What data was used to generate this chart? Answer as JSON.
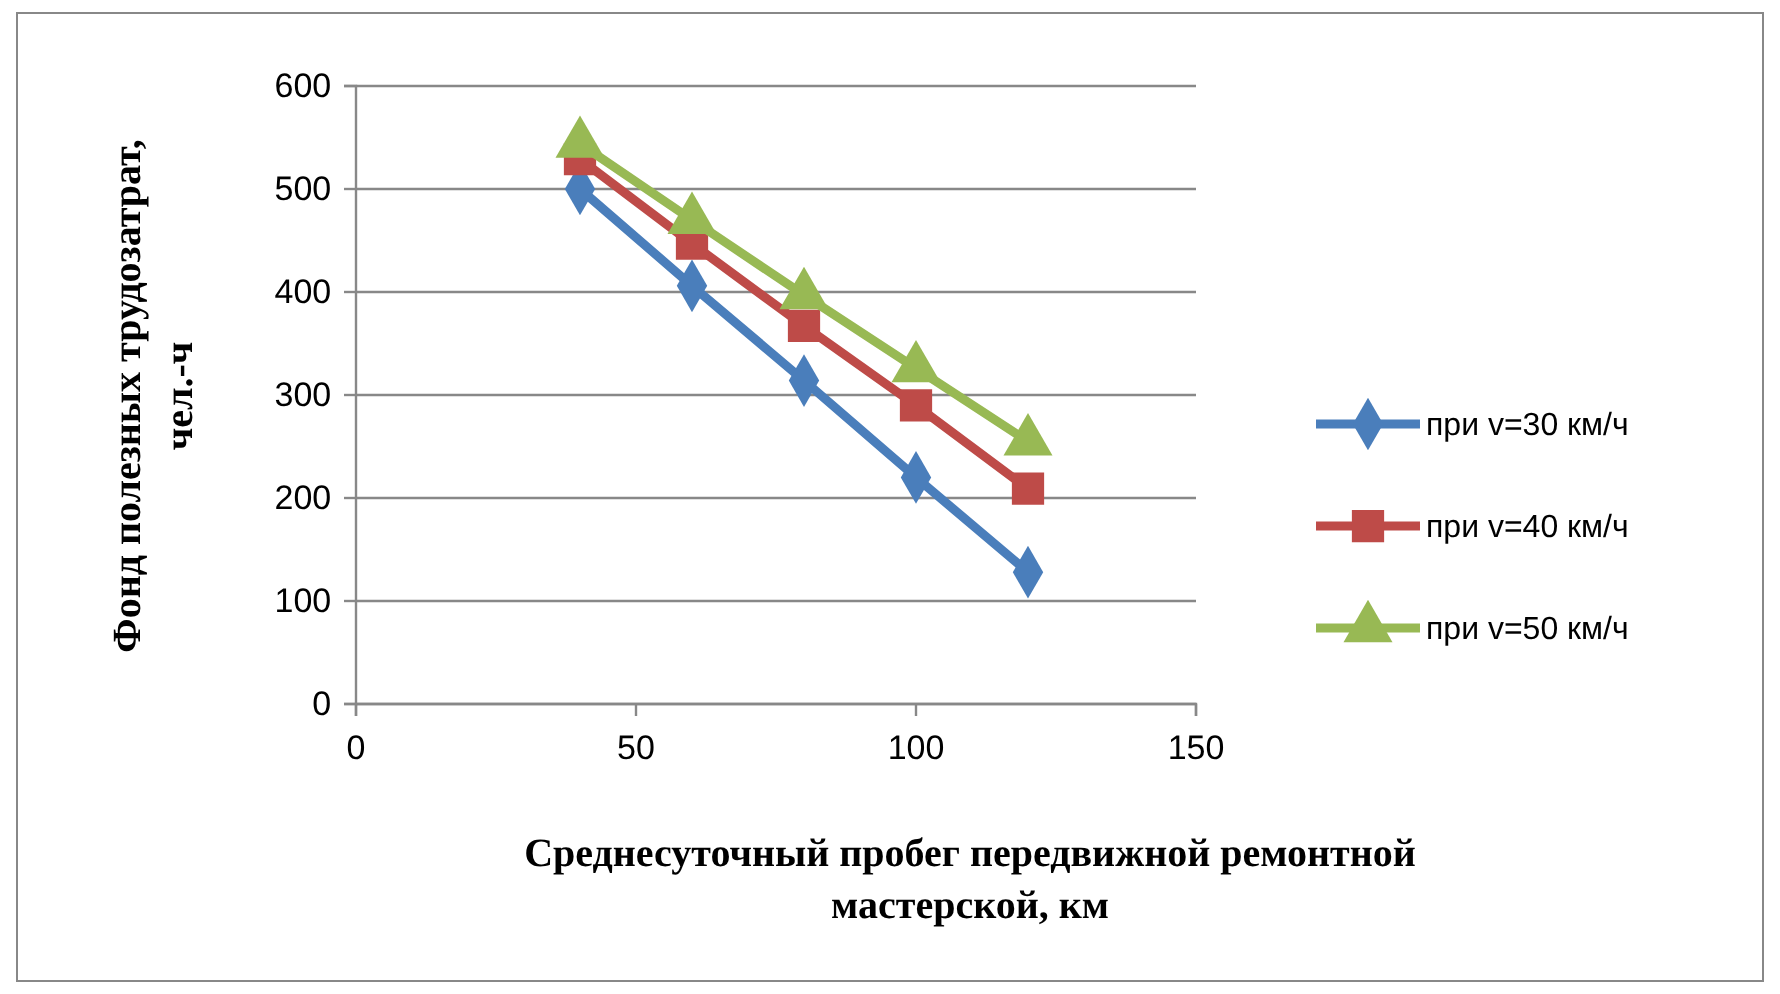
{
  "chart_data": {
    "type": "line",
    "xlabel": "Среднесуточный пробег передвижной ремонтной мастерской, км",
    "ylabel": "Фонд полезных трудозатрат, чел.-ч",
    "xlim": [
      0,
      150
    ],
    "xticks": [
      0,
      50,
      100,
      150
    ],
    "ylim": [
      0,
      600
    ],
    "yticks": [
      0,
      100,
      200,
      300,
      400,
      500,
      600
    ],
    "grid": "y",
    "legend": "right",
    "line_style": "solid",
    "series": [
      {
        "name": "при v=30 км/ч",
        "color": "#4a7ebb",
        "marker": "diamond",
        "x": [
          40,
          60,
          80,
          100,
          120
        ],
        "values": [
          500,
          406,
          314,
          220,
          128
        ]
      },
      {
        "name": "при v=40 км/ч",
        "color": "#be4b48",
        "marker": "square",
        "x": [
          40,
          60,
          80,
          100,
          120
        ],
        "values": [
          529,
          447,
          367,
          290,
          209
        ]
      },
      {
        "name": "при v=50 км/ч",
        "color": "#98b954",
        "marker": "triangle",
        "x": [
          40,
          60,
          80,
          100,
          120
        ],
        "values": [
          544,
          470,
          397,
          326,
          255
        ]
      }
    ]
  }
}
